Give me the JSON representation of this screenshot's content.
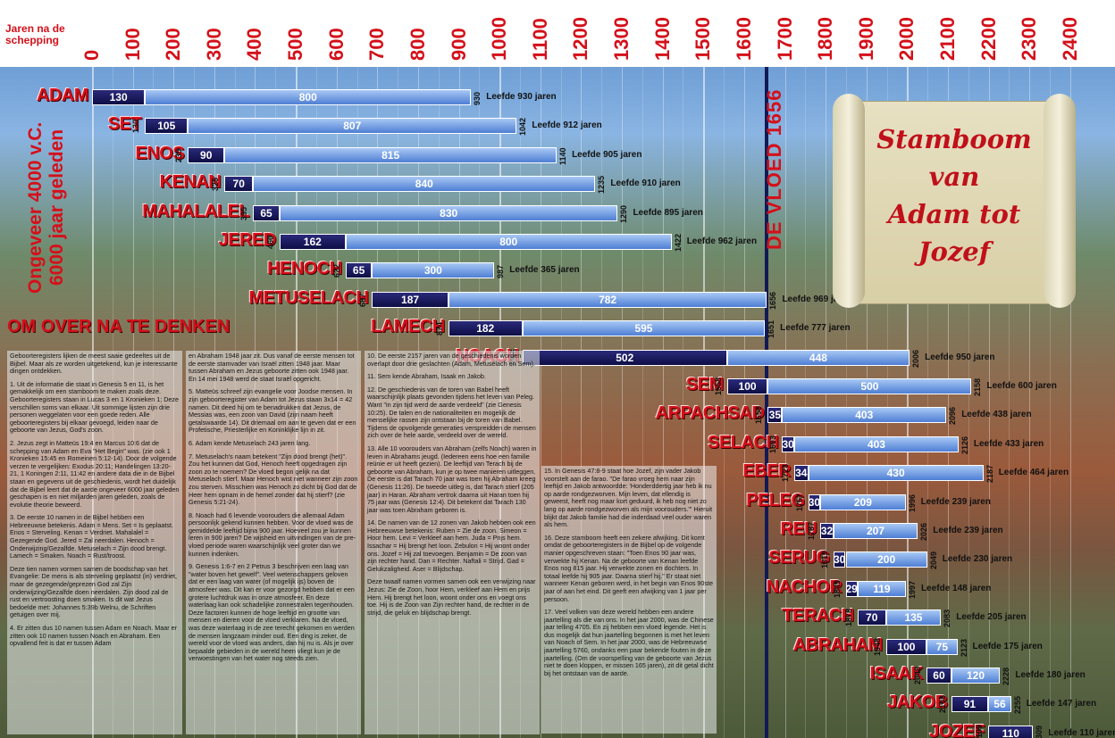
{
  "chart_data": {
    "type": "bar",
    "xlabel": "Jaren na de schepping",
    "x_ticks": [
      0,
      100,
      200,
      300,
      400,
      500,
      600,
      700,
      800,
      900,
      1000,
      1100,
      1200,
      1300,
      1400,
      1500,
      1600,
      1700,
      1800,
      1900,
      2000,
      2100,
      2200,
      2300,
      2400
    ],
    "xlim": [
      0,
      2420
    ],
    "title_lines": [
      "Stamboom",
      "van",
      "Adam tot",
      "Jozef"
    ],
    "era_label": "Ongeveer 4000 v.C. 6000 jaar geleden",
    "flood_label": "DE VLOED 1656",
    "flood_year": 1656,
    "life_prefix": "Leefde",
    "life_suffix": "jaren",
    "series": [
      {
        "name": "ADAM",
        "birth": 0,
        "first": 130,
        "rest": 800,
        "death": 930,
        "life": 930
      },
      {
        "name": "SET",
        "birth": 130,
        "first": 105,
        "rest": 807,
        "death": 1042,
        "life": 912
      },
      {
        "name": "ENOS",
        "birth": 235,
        "first": 90,
        "rest": 815,
        "death": 1140,
        "life": 905
      },
      {
        "name": "KENAN",
        "birth": 325,
        "first": 70,
        "rest": 840,
        "death": 1235,
        "life": 910
      },
      {
        "name": "MAHALALEL",
        "birth": 395,
        "first": 65,
        "rest": 830,
        "death": 1290,
        "life": 895
      },
      {
        "name": "JERED",
        "birth": 460,
        "first": 162,
        "rest": 800,
        "death": 1422,
        "life": 962
      },
      {
        "name": "HENOCH",
        "birth": 622,
        "first": 65,
        "rest": 300,
        "death": 987,
        "life": 365
      },
      {
        "name": "METUSELACH",
        "birth": 687,
        "first": 187,
        "rest": 782,
        "death": 1656,
        "life": 969
      },
      {
        "name": "LAMECH",
        "birth": 874,
        "first": 182,
        "rest": 595,
        "death": 1651,
        "life": 777
      },
      {
        "name": "NOACH",
        "birth": 1056,
        "first": 502,
        "rest": 448,
        "death": 2006,
        "life": 950
      },
      {
        "name": "SEM",
        "birth": 1558,
        "first": 100,
        "rest": 500,
        "death": 2158,
        "life": 600
      },
      {
        "name": "ARPACHSAD",
        "birth": 1658,
        "first": 35,
        "rest": 403,
        "death": 2096,
        "life": 438
      },
      {
        "name": "SELACH",
        "birth": 1693,
        "first": 30,
        "rest": 403,
        "death": 2126,
        "life": 433
      },
      {
        "name": "EBER",
        "birth": 1723,
        "first": 34,
        "rest": 430,
        "death": 2187,
        "life": 464
      },
      {
        "name": "PELEG",
        "birth": 1757,
        "first": 30,
        "rest": 209,
        "death": 1996,
        "life": 239
      },
      {
        "name": "REU",
        "birth": 1787,
        "first": 32,
        "rest": 207,
        "death": 2026,
        "life": 239
      },
      {
        "name": "SERUG",
        "birth": 1819,
        "first": 30,
        "rest": 200,
        "death": 2049,
        "life": 230
      },
      {
        "name": "NACHOR",
        "birth": 1849,
        "first": 29,
        "rest": 119,
        "death": 1997,
        "life": 148
      },
      {
        "name": "TERACH",
        "birth": 1878,
        "first": 70,
        "rest": 135,
        "death": 2083,
        "life": 205
      },
      {
        "name": "ABRAHAM",
        "birth": 1948,
        "first": 100,
        "rest": 75,
        "death": 2123,
        "life": 175
      },
      {
        "name": "ISAAK",
        "birth": 2048,
        "first": 60,
        "rest": 120,
        "death": 2228,
        "life": 180
      },
      {
        "name": "JAKOB",
        "birth": 2108,
        "first": 91,
        "rest": 56,
        "death": 2255,
        "life": 147
      },
      {
        "name": "JOZEF",
        "birth": 2199,
        "first": 110,
        "rest": null,
        "death": 2309,
        "life": 110
      }
    ],
    "colors": {
      "first_segment": "#14145a",
      "rest_segment": "#6a9ae0",
      "names": "#d4101a"
    }
  },
  "notes": {
    "heading": "OM OVER NA TE DENKEN",
    "col1": [
      "Geboorteregisters lijken de meest saaie gedeeltes uit de Bijbel. Maar als ze worden uitgetekend, kun je interessante dingen ontdekken.",
      "1. Uit de informatie die staat in Genesis 5 en 11, is het gemakkelijk om een stamboom te maken zoals deze. Geboorteregisters staan in Lucas 3 en 1 Kronieken 1; Deze verschillen soms van elkaar. Uit sommige lijsten zijn drie personen weggelaten voor een goede reden. Alle geboorteregisters bij elkaar gevoegd, leiden naar de geboorte van Jezus, God's zoon.",
      "2. Jezus zegt in Matteüs 19:4 en Marcus 10:6 dat de schepping van Adam en Eva \"Het Begin\" was. (zie ook 1 Kronieken 15:45 en Romeinen 5:12-14). Door de volgende verzen te vergelijken: Exodus 20:11; Handelingen 13:20-21, 1 Koningen 2:11, 11:42 en andere data die in de Bijbel staan en gegevens uit de geschiedenis, wordt het duidelijk dat de Bijbel leert dat de aarde ongeveer 6000 jaar geleden geschapen is en niet miljarden jaren geleden, zoals de evolutie theorie beweerd.",
      "3. De eerste 10 namen in de Bijbel hebben een Hebreeuwse betekenis. Adam = Mens. Set = Is geplaatst. Enos = Sterveling. Kenan = Verdriet. Mahalalel = Gezegende God. Jered = Zal neerdalen. Henoch = Onderwijzing/Gezalfde. Metuselach = Zijn dood brengt. Lamech = Smaken. Noach = Rust/troost.",
      "Deze tien namen vormen samen de boodschap van het Evangelie: De mens is als sterveling geplaatst (in) verdriet, maar de gezegende/geprezen God zal Zijn onderwijzing/Gezalfde doen neerdalen. Zijn dood zal de rust en vertroosting doen smaken. Is dit wat Jezus bedoelde met: Johannes 5:39b Welnu, de Schriften getuigen over mij.",
      "4. Er zitten dus 10 namen tussen Adam en Noach. Maar er zitten ook 10 namen tussen Noach en Abraham. Een opvallend feit is dat er tussen Adam"
    ],
    "col2": [
      "en Abraham 1948 jaar zit. Dus vanaf de eerste mensen tot de eerste stamvader van Israël zitten 1948 jaar. Maar tussen Abraham en Jezus geboorte zitten ook 1948 jaar. En 14 mei 1948 werd de staat Israël opgericht.",
      "5. Matteüs schreef zijn evangelie voor Joodse mensen. In zijn geboorteregister van Adam tot Jezus staan 3x14 = 42 namen. Dit deed hij om te benadrukken dat Jezus, de Messias was, een zoon van David (zijn naam heeft getalswaarde 14). Dit driemaal om aan te geven dat er een Profetische, Priesterlijke en Koninklijke lijn in zit.",
      "6. Adam kende Metuselach 243 jaren lang.",
      "7. Metuselach's naam betekent \"Zijn dood brengt (het)\". Zou het kunnen dat God, Henoch heeft opgedragen zijn zoon zo te noemen? De vloed begon gelijk na dat Metuselach stierf. Maar Henoch wist niet wanneer zijn zoon zou sterven. Misschien was Henoch zo dicht bij God dat de Heer hem opnam in de hemel zonder dat hij stierf? (zie Genesis 5:21-24).",
      "8. Noach had 6 levende voorouders die allemaal Adam persoonlijk gekend kunnen hebben. Voor de vloed was de gemiddelde leeftijd bijna 900 jaar. Hoeveel zou je kunnen leren in 900 jaren? De wijsheid en uitvindingen van de pre-vloed periode waren waarschijnlijk veel groter dan we kunnen indenken.",
      "9. Genesis 1:6-7 en 2 Petrus 3 beschrijven een laag van \"water boven het gewelf\". Veel wetenschappers geloven dat er een laag van water (of mogelijk ijs) boven de atmosfeer was. Dit kan er voor gezorgd hebben dat er een grotere luchtdruk was in onze atmosfeer. En deze waterlaag kan ook schadelijke zonnestralen tegenhouden. Deze factoren kunnen de hoge leeftijd en grootte van mensen en dieren voor de vloed verklaren. Na de vloed, was deze waterlaag in de zee terecht gekomen en werden de mensen langzaam minder oud. Een ding is zeker, de wereld voor de vloed was anders, dan hij nu is. Als je over bepaalde gebieden in de wereld heen vliegt kun je de verwoestingen van het water nog steeds zien."
    ],
    "col3": [
      "10. De eerste 2157 jaren van de geschiedenis worden overlapt door drie geslachten (Adam, Metuselach en Sem).",
      "11. Sem kende Abraham, Isaak en Jakob.",
      "12. De geschiedenis van de toren van Babel heeft waarschijnlijk plaats gevonden tijdens het leven van Peleg. Want \"in zijn tijd werd de aarde verdeeld\" (zie Genesis 10:25). De talen en de nationaliteiten en mogelijk de menselijke rassen zijn ontstaan bij de toren van Babel. Tijdens de opvolgende generaties verspreidden de mensen zich over de hele aarde, verdeeld over de wereld.",
      "13. Alle 10 voorouders van Abraham (zelfs Noach) waren in leven in Abrahams jeugd. (Iedereen eens hoe een familie reünie er uit heeft gezien). De leeftijd van Terach bij de geboorte van Abraham, kun je op twee manieren uitleggen. De eerste is dat Tarach 70 jaar was toen hij Abraham kreeg (Genesis 11:26). De tweede uitleg is, dat Tarach stierf (205 jaar) in Haran. Abraham vertrok daarna uit Haran toen hij 75 jaar was (Genesis 12:4). Dit betekent dat Tarach 130 jaar was toen Abraham geboren is.",
      "14. De namen van de 12 zonen van Jakob hebben ook een Hebreeuwse betekenis: Ruben = Zie de zoon. Simeon = Hoor hem. Levi = Verkleef aan hem. Juda = Prijs hem. Issachar = Hij brengt het loon. Zebulon = Hij woont onder ons. Jozef = Hij zal toevoegen. Benjamin = De zoon van zijn rechter hand. Dan = Rechter. Naftali = Strijd. Gad = Gelukzaligheid. Aser = Blijdschap.",
      "Deze twaalf namen vormen samen ook een verwijzing naar Jezus: Zie de Zoon, hoor Hem, verkleef aan Hem en prijs Hem. Hij brengt het loon, woont onder ons en voegt ons toe. Hij is de Zoon van Zijn rechter hand, de rechter in de strijd, die geluk en blijdschap brengt."
    ],
    "col4": [
      "15. In Genesis 47:8-9 staat hoe Jozef, zijn vader Jakob voorstelt aan de farao. \"De farao vroeg hem naar zijn leeftijd en Jakob antwoordde: 'Honderddertig jaar heb ik nu op aarde rondgezworven. Mijn leven, dat ellendig is geweest, heeft nog maar kort geduurd, ik heb nog niet zo lang op aarde rondgezworven als mijn voorouders.'\" Hieruit blijkt dat Jakob familie had die inderdaad veel ouder waren als hem.",
      "16. Deze stamboom heeft een zekere afwijking. Dit komt omdat de geboorteregisters in de Bijbel op de volgende manier opgeschreven staan: \"Toen Enos 90 jaar was, verwekte hij Kenan. Na de geboorte van Kenan leefde Enos nog 815 jaar. Hij verwekte zonen en dochters. In totaal leefde hij 905 jaar. Daarna stierf hij.\" Er staat niet wanneer Kenan geboren werd, in het begin van Enos 90ste jaar of aan het eind. Dit geeft een afwijking van 1 jaar per persoon.",
      "17. Veel volken van deze wereld hebben een andere jaartelling als die van ons. In het jaar 2000, was de Chinese jaar telling 4705. En zij hebben een vloed legende. Het is dus mogelijk dat hun jaartelling begonnen is met het leven van Noach of Sem. In het jaar 2000, was de Hebreeuwse jaartelling 5760, ondanks een paar bekende fouten in deze jaartelling. (Om de voorspelling van de geboorte van Jezus niet te doen kloppen, er missen 165 jaren), zit dit getal dicht bij het ontstaan van de aarde."
    ]
  }
}
